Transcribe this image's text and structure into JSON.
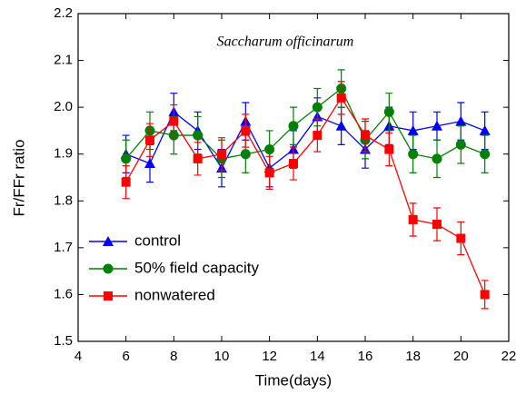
{
  "chart_data": {
    "type": "line",
    "annotation": "Saccharum officinarum",
    "xlabel": "Time(days)",
    "ylabel": "Fr/FFr ratio",
    "x": [
      6,
      7,
      8,
      9,
      10,
      11,
      12,
      13,
      14,
      15,
      16,
      17,
      18,
      19,
      20,
      21
    ],
    "series": [
      {
        "name": "control",
        "color": "#0000ff",
        "marker": "triangle",
        "values": [
          1.9,
          1.88,
          1.99,
          1.95,
          1.87,
          1.97,
          1.87,
          1.91,
          1.98,
          1.96,
          1.91,
          1.96,
          1.95,
          1.96,
          1.97,
          1.95
        ],
        "errors": [
          0.04,
          0.04,
          0.04,
          0.04,
          0.04,
          0.04,
          0.04,
          0.04,
          0.04,
          0.04,
          0.04,
          0.04,
          0.04,
          0.03,
          0.04,
          0.04
        ]
      },
      {
        "name": "50% field capacity",
        "color": "#008000",
        "marker": "circle",
        "values": [
          1.89,
          1.95,
          1.94,
          1.94,
          1.89,
          1.9,
          1.91,
          1.96,
          2.0,
          2.04,
          1.93,
          1.99,
          1.9,
          1.89,
          1.92,
          1.9
        ],
        "errors": [
          0.04,
          0.04,
          0.04,
          0.04,
          0.04,
          0.04,
          0.04,
          0.04,
          0.04,
          0.04,
          0.04,
          0.04,
          0.04,
          0.04,
          0.04,
          0.04
        ]
      },
      {
        "name": "nonwatered",
        "color": "#ff0000",
        "marker": "square",
        "values": [
          1.84,
          1.93,
          1.97,
          1.89,
          1.9,
          1.95,
          1.86,
          1.88,
          1.94,
          2.02,
          1.94,
          1.91,
          1.76,
          1.75,
          1.72,
          1.6
        ],
        "errors": [
          0.035,
          0.035,
          0.035,
          0.035,
          0.035,
          0.035,
          0.035,
          0.035,
          0.035,
          0.035,
          0.035,
          0.035,
          0.035,
          0.035,
          0.035,
          0.03
        ]
      }
    ],
    "xlim": [
      4,
      22
    ],
    "xticks": [
      4,
      6,
      8,
      10,
      12,
      14,
      16,
      18,
      20,
      22
    ],
    "ylim": [
      1.5,
      2.2
    ],
    "yticks": [
      1.5,
      1.6,
      1.7,
      1.8,
      1.9,
      {
        "value": 2,
        "label": "2.0"
      },
      2.1,
      2.2
    ],
    "legend": "lower-left"
  }
}
